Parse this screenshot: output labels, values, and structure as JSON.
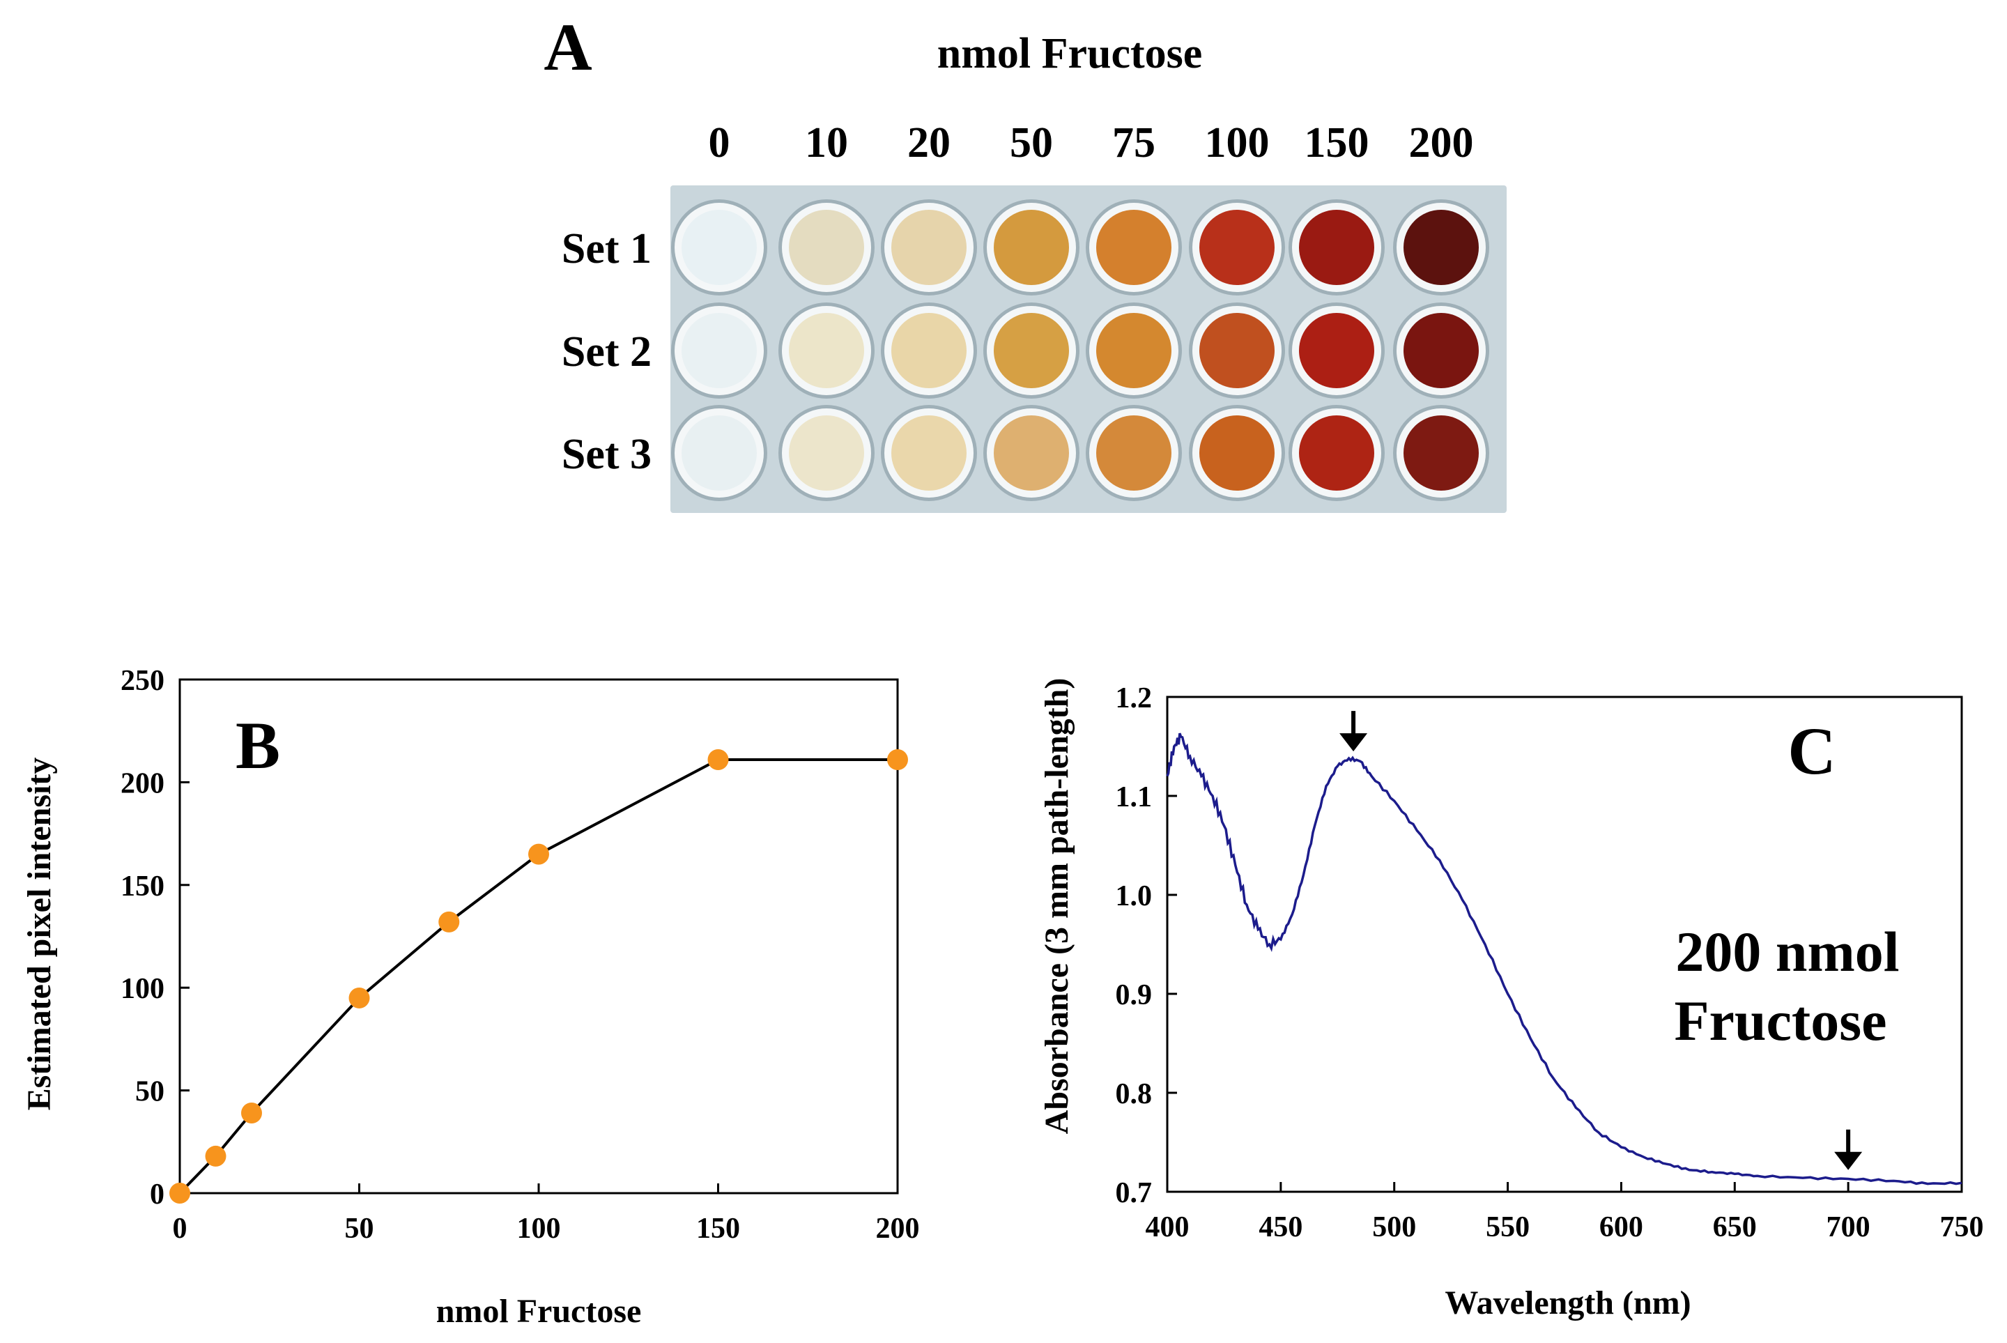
{
  "figure": {
    "panel_a": {
      "letter": "A",
      "title": "nmol Fructose",
      "columns": [
        "0",
        "10",
        "20",
        "50",
        "75",
        "100",
        "150",
        "200"
      ],
      "rows": [
        "Set 1",
        "Set 2",
        "Set 3"
      ],
      "well_colors": [
        [
          "#e8f1f4",
          "#e4dcc0",
          "#e6d4ab",
          "#d49a3e",
          "#d4802d",
          "#b8301a",
          "#9a1a12",
          "#5c120e"
        ],
        [
          "#e9f1f3",
          "#ece5c9",
          "#e9d6a8",
          "#d6a044",
          "#d4882f",
          "#c0501f",
          "#ac1f14",
          "#7a1510"
        ],
        [
          "#e8f0f2",
          "#ece5cb",
          "#ead7ab",
          "#deb070",
          "#d4893a",
          "#c8621e",
          "#ae2414",
          "#7e1a12"
        ]
      ],
      "plate_color": "#c9d6dc"
    },
    "panel_c_label": {
      "line1": "200 nmol",
      "line2": "Fructose"
    }
  },
  "chart_data": [
    {
      "type": "line",
      "panel": "B",
      "title": "",
      "xlabel": "nmol Fructose",
      "ylabel": "Estimated pixel intensity",
      "xlim": [
        0,
        200
      ],
      "ylim": [
        0,
        250
      ],
      "xticks": [
        0,
        50,
        100,
        150,
        200
      ],
      "yticks": [
        0,
        50,
        100,
        150,
        200,
        250
      ],
      "series": [
        {
          "name": "pixel intensity",
          "x": [
            0,
            10,
            20,
            50,
            75,
            100,
            150,
            200
          ],
          "y": [
            0,
            18,
            39,
            95,
            132,
            165,
            211,
            211
          ],
          "line_color": "#000000",
          "marker_color": "#f7941d"
        }
      ],
      "grid": false,
      "annotations": [
        {
          "text": "B",
          "position": "top-left"
        }
      ]
    },
    {
      "type": "line",
      "panel": "C",
      "title": "",
      "xlabel": "Wavelength  (nm)",
      "ylabel": "Absorbance (3 mm path-length)",
      "xlim": [
        400,
        750
      ],
      "ylim": [
        0.7,
        1.2
      ],
      "xticks": [
        400,
        450,
        500,
        550,
        600,
        650,
        700,
        750
      ],
      "yticks": [
        0.7,
        0.8,
        0.9,
        1.0,
        1.1,
        1.2
      ],
      "series": [
        {
          "name": "200 nmol Fructose",
          "color": "#1c1c8c",
          "x": [
            400,
            403,
            406,
            410,
            415,
            420,
            425,
            430,
            435,
            440,
            445,
            450,
            455,
            460,
            465,
            470,
            475,
            480,
            485,
            490,
            500,
            510,
            520,
            530,
            540,
            550,
            560,
            570,
            580,
            590,
            600,
            610,
            620,
            630,
            640,
            650,
            660,
            680,
            700,
            720,
            735,
            750
          ],
          "y": [
            1.12,
            1.15,
            1.16,
            1.14,
            1.12,
            1.1,
            1.07,
            1.03,
            0.99,
            0.965,
            0.95,
            0.955,
            0.98,
            1.02,
            1.07,
            1.11,
            1.13,
            1.138,
            1.135,
            1.12,
            1.095,
            1.065,
            1.035,
            0.995,
            0.95,
            0.9,
            0.855,
            0.815,
            0.785,
            0.76,
            0.745,
            0.735,
            0.728,
            0.722,
            0.72,
            0.718,
            0.716,
            0.714,
            0.713,
            0.711,
            0.708,
            0.709
          ]
        }
      ],
      "arrows_at_x": [
        482,
        700
      ],
      "grid": false,
      "annotations": [
        {
          "text": "C",
          "position": "top-right"
        }
      ]
    }
  ]
}
